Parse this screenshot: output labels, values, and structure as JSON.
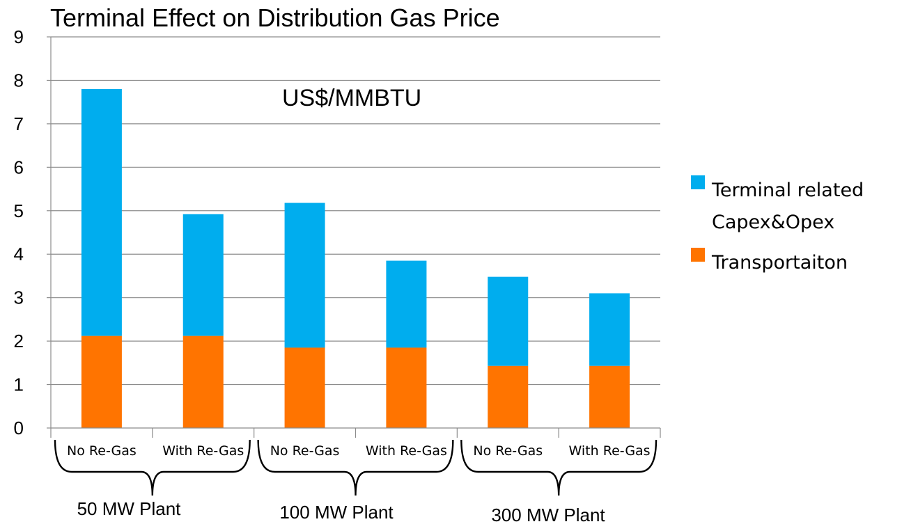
{
  "chart_data": {
    "type": "bar",
    "stacked": true,
    "title": "Terminal Effect on Distribution Gas Price",
    "annotation": "US$/MMBTU",
    "xlabel": "",
    "ylabel": "",
    "ylim": [
      0,
      9
    ],
    "yticks": [
      "0",
      "1",
      "2",
      "3",
      "4",
      "5",
      "6",
      "7",
      "8",
      "9"
    ],
    "grid": true,
    "legend_position": "right",
    "categories": [
      "No Re-Gas",
      "With Re-Gas",
      "No Re-Gas",
      "With Re-Gas",
      "No Re-Gas",
      "With Re-Gas"
    ],
    "groups": [
      {
        "label": "50 MW Plant",
        "categories": [
          0,
          1
        ]
      },
      {
        "label": "100 MW Plant",
        "categories": [
          2,
          3
        ]
      },
      {
        "label": "300 MW Plant",
        "categories": [
          4,
          5
        ]
      }
    ],
    "series": [
      {
        "name": "Transportaiton",
        "color": "#ff7400",
        "values": [
          2.12,
          2.12,
          1.85,
          1.85,
          1.43,
          1.43
        ]
      },
      {
        "name": "Terminal related Capex&Opex",
        "color": "#00adee",
        "values": [
          5.68,
          2.8,
          3.33,
          2.0,
          2.05,
          1.67
        ]
      }
    ],
    "legend": [
      {
        "series": 1,
        "lines": [
          "Terminal related",
          "Capex&Opex"
        ]
      },
      {
        "series": 0,
        "lines": [
          "Transportaiton"
        ]
      }
    ]
  }
}
